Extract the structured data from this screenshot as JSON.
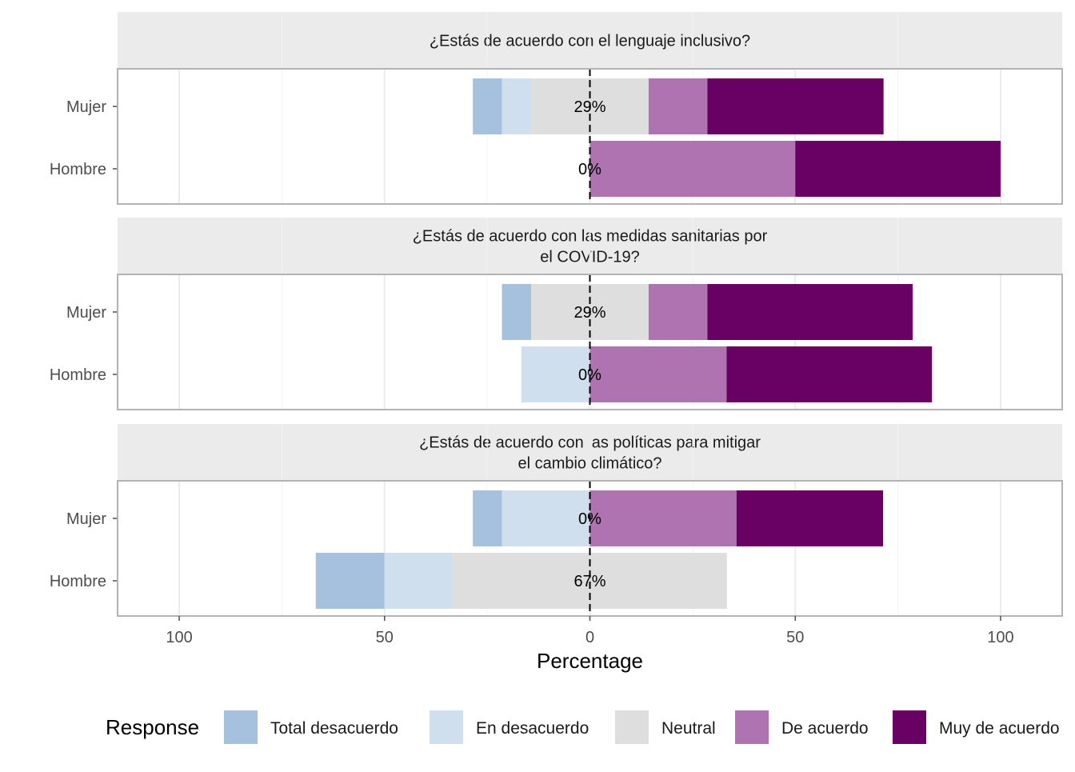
{
  "chart_data": {
    "type": "bar",
    "orientation": "horizontal",
    "stacking": "diverging",
    "xlabel": "Percentage",
    "xlim": [
      -115,
      115
    ],
    "x_ticks": [
      -100,
      -50,
      0,
      50,
      100
    ],
    "x_tick_labels": [
      "100",
      "50",
      "0",
      "50",
      "100"
    ],
    "legend": {
      "title": "Response",
      "placement": "bottom",
      "items": [
        {
          "label": "Total desacuerdo",
          "color": "#a6c1dd"
        },
        {
          "label": "En desacuerdo",
          "color": "#cfdfed"
        },
        {
          "label": "Neutral",
          "color": "#dedede"
        },
        {
          "label": "De acuerdo",
          "color": "#b073b2"
        },
        {
          "label": "Muy de acuerdo",
          "color": "#690063"
        }
      ]
    },
    "categories": [
      "Mujer",
      "Hombre"
    ],
    "panels": [
      {
        "title_lines": [
          "¿Estás de acuerdo con el lenguaje inclusivo?"
        ],
        "rows": [
          {
            "label": "Mujer",
            "values": [
              7.1,
              7.1,
              28.6,
              14.3,
              42.9
            ],
            "neutral_label": "29%"
          },
          {
            "label": "Hombre",
            "values": [
              0,
              0,
              0,
              50,
              50
            ],
            "neutral_label": "0%"
          }
        ]
      },
      {
        "title_lines": [
          "¿Estás de acuerdo con las medidas sanitarias por",
          "el COVID-19?"
        ],
        "rows": [
          {
            "label": "Mujer",
            "values": [
              7.1,
              0,
              28.6,
              14.3,
              50
            ],
            "neutral_label": "29%"
          },
          {
            "label": "Hombre",
            "values": [
              0,
              16.7,
              0,
              33.3,
              50
            ],
            "neutral_label": "0%"
          }
        ]
      },
      {
        "title_lines": [
          "¿Estás de acuerdo con las políticas para mitigar",
          "el cambio climático?"
        ],
        "rows": [
          {
            "label": "Mujer",
            "values": [
              7.1,
              21.4,
              0,
              35.7,
              35.7
            ],
            "neutral_label": "0%"
          },
          {
            "label": "Hombre",
            "values": [
              16.7,
              16.7,
              66.7,
              0,
              0
            ],
            "neutral_label": "67%"
          }
        ]
      }
    ]
  }
}
